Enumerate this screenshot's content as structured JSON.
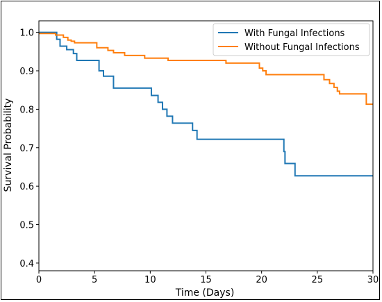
{
  "chart_data": {
    "type": "line",
    "title": "",
    "xlabel": "Time (Days)",
    "ylabel": "Survival Probability",
    "xlim": [
      0,
      30
    ],
    "ylim": [
      0.38,
      1.03
    ],
    "xticks": [
      0,
      5,
      10,
      15,
      20,
      25,
      30
    ],
    "yticks": [
      0.4,
      0.5,
      0.6,
      0.7,
      0.8,
      0.9,
      1.0
    ],
    "xtick_labels": [
      "0",
      "5",
      "10",
      "15",
      "20",
      "25",
      "30"
    ],
    "ytick_labels": [
      "0.4",
      "0.5",
      "0.6",
      "0.7",
      "0.8",
      "0.9",
      "1.0"
    ],
    "grid": false,
    "legend_position": "top-right",
    "step": true,
    "series": [
      {
        "name": "With Fungal Infections",
        "color": "#1f77b4",
        "x": [
          0,
          1.6,
          1.9,
          2.5,
          3.1,
          3.4,
          5.4,
          5.8,
          6.7,
          10.1,
          10.7,
          11.1,
          11.5,
          12.0,
          12.5,
          13.8,
          14.2,
          22.0,
          22.1,
          23.0,
          30.0
        ],
        "y": [
          1.0,
          0.982,
          0.964,
          0.955,
          0.945,
          0.927,
          0.9,
          0.886,
          0.855,
          0.836,
          0.818,
          0.8,
          0.782,
          0.764,
          0.764,
          0.745,
          0.722,
          0.69,
          0.659,
          0.627,
          0.627
        ]
      },
      {
        "name": "Without Fungal Infections",
        "color": "#ff7f0e",
        "x": [
          0,
          1.5,
          2.2,
          2.6,
          2.9,
          3.2,
          5.2,
          6.2,
          6.7,
          7.7,
          9.5,
          11.6,
          16.8,
          19.8,
          20.1,
          20.4,
          25.6,
          26.1,
          26.5,
          26.8,
          27.0,
          29.4,
          30.0
        ],
        "y": [
          0.997,
          0.993,
          0.987,
          0.98,
          0.977,
          0.973,
          0.96,
          0.953,
          0.947,
          0.94,
          0.933,
          0.927,
          0.92,
          0.907,
          0.9,
          0.89,
          0.877,
          0.867,
          0.857,
          0.847,
          0.84,
          0.813,
          0.813
        ]
      }
    ]
  }
}
